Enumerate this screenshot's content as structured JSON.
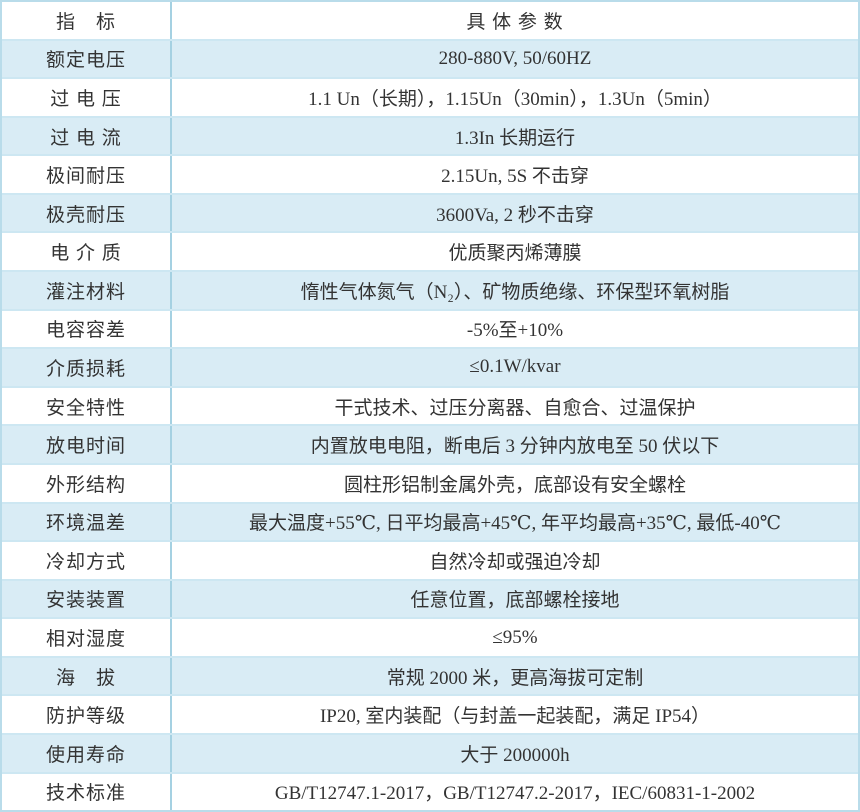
{
  "colors": {
    "row_alt_background": "#d9ecf5",
    "row_separator": "#cde7f2",
    "column_divider": "#a5d1e2",
    "outer_border": "#b9dcea",
    "text": "#333333"
  },
  "table": {
    "header": {
      "label": "指　标",
      "value": "具 体 参 数"
    },
    "rows": [
      {
        "label": "额定电压",
        "value": "280-880V, 50/60HZ"
      },
      {
        "label": "过 电 压",
        "value": "1.1 Un（长期），1.15Un（30min），1.3Un（5min）"
      },
      {
        "label": "过 电 流",
        "value": "1.3In 长期运行"
      },
      {
        "label": "极间耐压",
        "value": "2.15Un, 5S 不击穿"
      },
      {
        "label": "极壳耐压",
        "value": "3600Va, 2 秒不击穿"
      },
      {
        "label": "电 介 质",
        "value": "优质聚丙烯薄膜"
      },
      {
        "label": "灌注材料",
        "value": "惰性气体氮气（N₂）、矿物质绝缘、环保型环氧树脂"
      },
      {
        "label": "电容容差",
        "value": "-5%至+10%"
      },
      {
        "label": "介质损耗",
        "value": "≤0.1W/kvar"
      },
      {
        "label": "安全特性",
        "value": "干式技术、过压分离器、自愈合、过温保护"
      },
      {
        "label": "放电时间",
        "value": "内置放电电阻，断电后 3 分钟内放电至 50 伏以下"
      },
      {
        "label": "外形结构",
        "value": "圆柱形铝制金属外壳，底部设有安全螺栓"
      },
      {
        "label": "环境温差",
        "value": "最大温度+55℃, 日平均最高+45℃, 年平均最高+35℃, 最低-40℃"
      },
      {
        "label": "冷却方式",
        "value": "自然冷却或强迫冷却"
      },
      {
        "label": "安装装置",
        "value": "任意位置，底部螺栓接地"
      },
      {
        "label": "相对湿度",
        "value": "≤95%"
      },
      {
        "label": "海　拔",
        "value": "常规 2000 米，更高海拔可定制"
      },
      {
        "label": "防护等级",
        "value": "IP20, 室内装配（与封盖一起装配，满足 IP54）"
      },
      {
        "label": "使用寿命",
        "value": "大于 200000h"
      },
      {
        "label": "技术标准",
        "value": "GB/T12747.1-2017，GB/T12747.2-2017，IEC/60831-1-2002"
      }
    ]
  }
}
